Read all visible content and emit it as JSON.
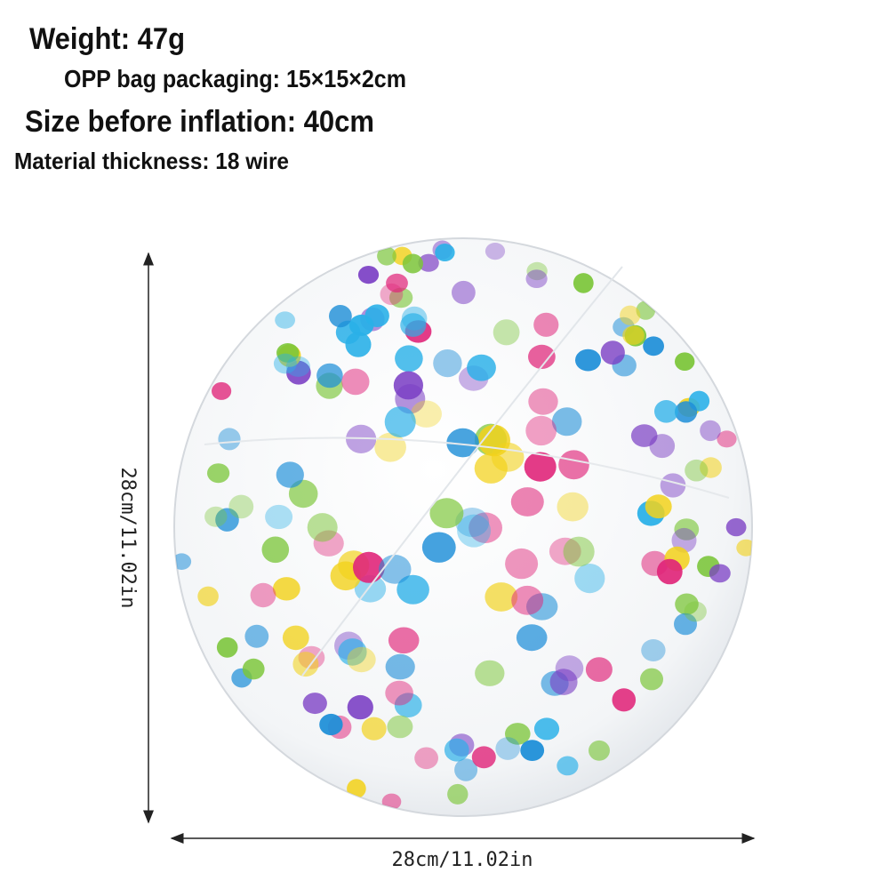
{
  "specs": {
    "weight": "Weight: 47g",
    "packaging": "OPP bag packaging: 15×15×2cm",
    "size_before_inflation": "Size before inflation: 40cm",
    "material_thickness": "Material thickness: 18 wire"
  },
  "dimensions": {
    "height": "28cm/11.02in",
    "width": "28cm/11.02in"
  }
}
